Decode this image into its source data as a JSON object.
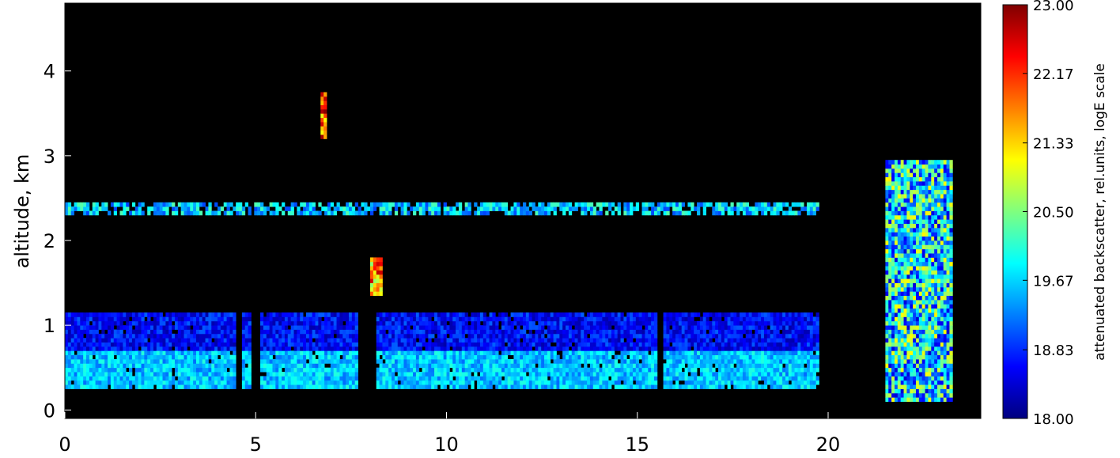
{
  "chart_data": {
    "type": "heatmap",
    "title": "",
    "xlabel": "",
    "ylabel": "altitude, km",
    "xlim": [
      0,
      24
    ],
    "ylim": [
      -0.1,
      4.8
    ],
    "x_ticks": [
      0,
      5,
      10,
      15,
      20
    ],
    "x_tick_labels": [
      "0",
      "5",
      "10",
      "15",
      "20"
    ],
    "y_ticks": [
      0,
      1,
      2,
      3,
      4
    ],
    "y_tick_labels": [
      "0",
      "1",
      "2",
      "3",
      "4"
    ],
    "background": "#000000",
    "colorbar": {
      "title": "attenuated backscatter, rel.units, logE scale",
      "min": 18.0,
      "max": 23.0,
      "ticks": [
        18.0,
        18.83,
        19.67,
        20.5,
        21.33,
        22.17,
        23.0
      ],
      "tick_labels": [
        "18.00",
        "18.83",
        "19.67",
        "20.50",
        "21.33",
        "22.17",
        "23.00"
      ],
      "colormap": [
        "#00007f",
        "#0000ff",
        "#007fff",
        "#00ffff",
        "#7fff7f",
        "#ffff00",
        "#ff7f00",
        "#ff0000",
        "#7f0000"
      ]
    },
    "regions": [
      {
        "name": "boundary layer",
        "x": [
          0,
          19.7
        ],
        "y": [
          0.25,
          1.15
        ],
        "value_range": [
          18.3,
          19.9
        ],
        "gaps": [
          [
            4.55,
            4.6
          ],
          [
            4.95,
            5.05
          ],
          [
            7.75,
            8.1
          ],
          [
            15.6,
            15.65
          ]
        ]
      },
      {
        "name": "cloud layer 2.4 km",
        "x": [
          0,
          19.7
        ],
        "y": [
          2.3,
          2.45
        ],
        "value_range": [
          18.5,
          20.3
        ]
      },
      {
        "name": "cloud 3.7 km",
        "x": [
          6.7,
          6.85
        ],
        "y": [
          3.2,
          3.75
        ],
        "value_range": [
          21.0,
          23.0
        ]
      },
      {
        "name": "cloud 1.6 km",
        "x": [
          8.0,
          8.25
        ],
        "y": [
          1.35,
          1.8
        ],
        "value_range": [
          20.5,
          22.8
        ]
      },
      {
        "name": "late column",
        "x": [
          21.5,
          23.2
        ],
        "y": [
          0.1,
          2.95
        ],
        "value_range": [
          18.4,
          21.2
        ]
      }
    ]
  }
}
